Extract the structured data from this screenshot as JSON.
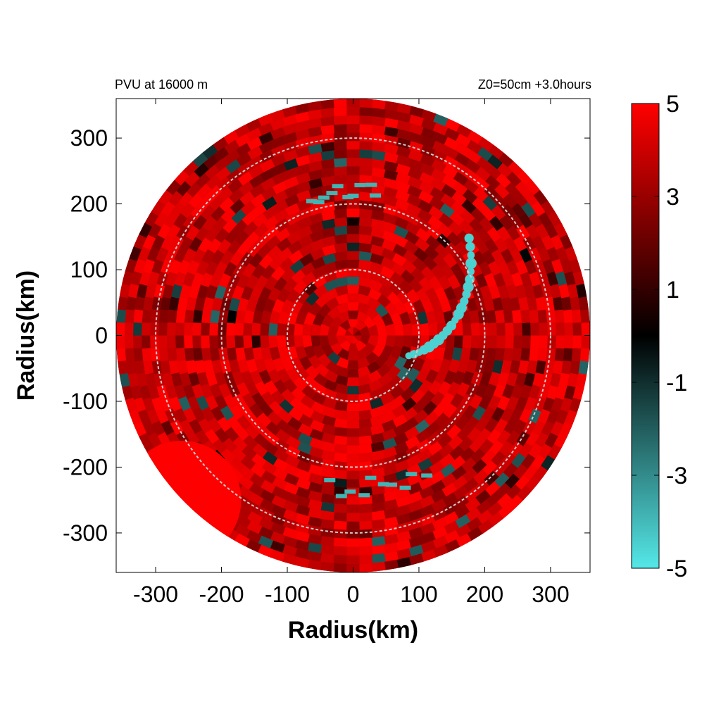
{
  "chart_data": {
    "type": "heatmap",
    "title_left": "PVU at 16000 m",
    "title_right": "Z0=50cm  +3.0hours",
    "xlabel": "Radius(km)",
    "ylabel": "Radius(km)",
    "xlim": [
      -360,
      360
    ],
    "ylim": [
      -360,
      360
    ],
    "x_ticks": [
      -300,
      -200,
      -100,
      0,
      100,
      200,
      300
    ],
    "y_ticks": [
      -300,
      -200,
      -100,
      0,
      100,
      200,
      300
    ],
    "domain_radius": 360,
    "reference_circles": [
      100,
      200,
      300
    ],
    "colorbar": {
      "range": [
        -5,
        5
      ],
      "ticks": [
        5,
        3,
        1,
        -1,
        -3,
        -5
      ],
      "colors": {
        "min": "#55e8e8",
        "mid": "#000000",
        "max": "#ff0000"
      }
    },
    "features": [
      {
        "kind": "spiral_band",
        "sign": "negative",
        "value": -4,
        "center_angle_deg": 20,
        "radius_from_km": 90,
        "radius_to_km": 230
      },
      {
        "kind": "arc",
        "sign": "negative",
        "value": -3,
        "radius_km": 220,
        "angle_from_deg": 80,
        "angle_to_deg": 110
      },
      {
        "kind": "arc",
        "sign": "negative",
        "value": -3,
        "radius_km": 230,
        "angle_from_deg": 260,
        "angle_to_deg": 300
      },
      {
        "kind": "patch",
        "sign": "positive",
        "value": 5,
        "center_km": [
          -260,
          -250
        ]
      }
    ]
  }
}
